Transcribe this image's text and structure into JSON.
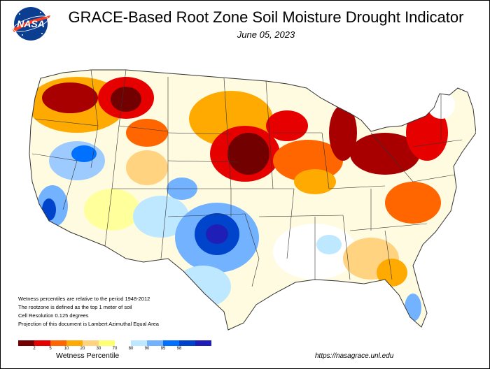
{
  "title": "GRACE-Based Root Zone Soil  Moisture Drought Indicator",
  "date": "June 05, 2023",
  "logo_text": "NASA",
  "notes": [
    "Wetness percentiles are relative to the period 1948-2012",
    "The rootzone is defined as the top 1 meter of soil",
    "Cell Resolution 0.125 degrees",
    "Projection of this document is Lambert Azimuthal Equal Area"
  ],
  "legend": {
    "title": "Wetness Percentile",
    "ticks": [
      "2",
      "5",
      "10",
      "20",
      "30",
      "70",
      "80",
      "90",
      "95",
      "98"
    ],
    "colors": [
      "#730000",
      "#e60000",
      "#ff6600",
      "#ffaa00",
      "#ffd37f",
      "#ffff73",
      "#ffffff",
      "#bee8ff",
      "#73b2ff",
      "#0070ff",
      "#0044cc",
      "#1f1fb8"
    ]
  },
  "url": "https://nasagrace.unl.edu"
}
